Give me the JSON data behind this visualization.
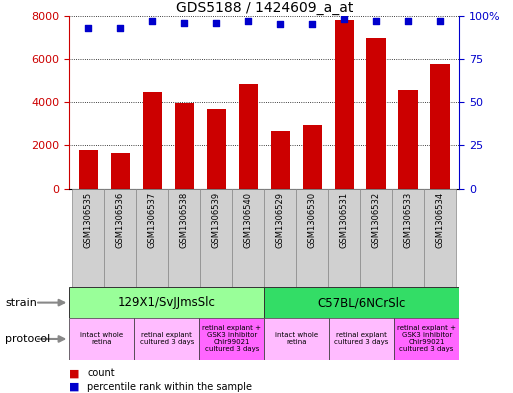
{
  "title": "GDS5188 / 1424609_a_at",
  "samples": [
    "GSM1306535",
    "GSM1306536",
    "GSM1306537",
    "GSM1306538",
    "GSM1306539",
    "GSM1306540",
    "GSM1306529",
    "GSM1306530",
    "GSM1306531",
    "GSM1306532",
    "GSM1306533",
    "GSM1306534"
  ],
  "counts": [
    1800,
    1650,
    4450,
    3950,
    3700,
    4850,
    2650,
    2950,
    7800,
    6950,
    4550,
    5750
  ],
  "percentiles": [
    93,
    93,
    97,
    96,
    96,
    97,
    95,
    95,
    98,
    97,
    97,
    97
  ],
  "bar_color": "#cc0000",
  "dot_color": "#0000cc",
  "ylim_left": [
    0,
    8000
  ],
  "ylim_right": [
    0,
    100
  ],
  "yticks_left": [
    0,
    2000,
    4000,
    6000,
    8000
  ],
  "yticks_right": [
    0,
    25,
    50,
    75,
    100
  ],
  "strain_groups": [
    {
      "label": "129X1/SvJJmsSlc",
      "start": 0,
      "end": 6,
      "color": "#99ff99"
    },
    {
      "label": "C57BL/6NCrSlc",
      "start": 6,
      "end": 12,
      "color": "#33dd66"
    }
  ],
  "protocol_groups": [
    {
      "label": "intact whole\nretina",
      "start": 0,
      "end": 2,
      "color": "#ffbbff"
    },
    {
      "label": "retinal explant\ncultured 3 days",
      "start": 2,
      "end": 4,
      "color": "#ffbbff"
    },
    {
      "label": "retinal explant +\nGSK3 inhibitor\nChir99021\ncultured 3 days",
      "start": 4,
      "end": 6,
      "color": "#ff66ff"
    },
    {
      "label": "intact whole\nretina",
      "start": 6,
      "end": 8,
      "color": "#ffbbff"
    },
    {
      "label": "retinal explant\ncultured 3 days",
      "start": 8,
      "end": 10,
      "color": "#ffbbff"
    },
    {
      "label": "retinal explant +\nGSK3 inhibitor\nChir99021\ncultured 3 days",
      "start": 10,
      "end": 12,
      "color": "#ff66ff"
    }
  ],
  "legend_count_color": "#cc0000",
  "legend_dot_color": "#0000cc",
  "label_bg_color": "#d0d0d0",
  "background_color": "#ffffff"
}
